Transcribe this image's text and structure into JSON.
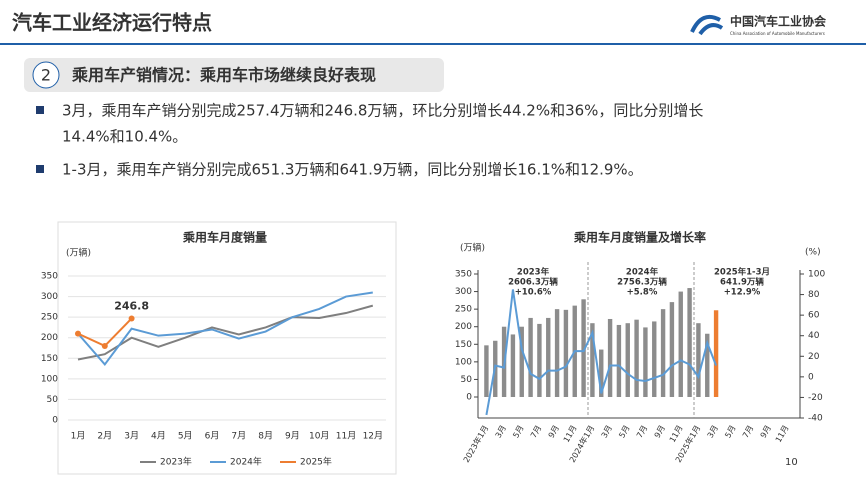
{
  "header": {
    "title": "汽车工业经济运行特点",
    "org": "中国汽车工业协会",
    "org_en": "China Association of Automobile Manufacturers"
  },
  "section": {
    "number": "2",
    "title": "乘用车产销情况：乘用车市场继续良好表现"
  },
  "bullets": [
    [
      "3月，乘用车产销分别完成257.4万辆和246.8万辆，环比分别增长44.2%和36%，同比分别增长",
      "14.4%和10.4%。"
    ],
    [
      "1-3月，乘用车产销分别完成651.3万辆和641.9万辆，同比分别增长16.1%和12.9%。"
    ]
  ],
  "page_number": "10",
  "chart_data": [
    {
      "type": "line",
      "title": "乘用车月度销量",
      "y_unit": "(万辆)",
      "categories": [
        "1月",
        "2月",
        "3月",
        "4月",
        "5月",
        "6月",
        "7月",
        "8月",
        "9月",
        "10月",
        "11月",
        "12月"
      ],
      "ylim": [
        0,
        350
      ],
      "yticks": [
        0,
        50,
        100,
        150,
        200,
        250,
        300,
        350
      ],
      "series": [
        {
          "name": "2023年",
          "color": "#7f7f7f",
          "values": [
            147,
            160,
            200,
            178,
            200,
            225,
            208,
            225,
            250,
            248,
            260,
            278
          ]
        },
        {
          "name": "2024年",
          "color": "#5b9bd5",
          "values": [
            210,
            135,
            222,
            205,
            210,
            220,
            198,
            215,
            250,
            270,
            300,
            310
          ]
        },
        {
          "name": "2025年",
          "color": "#ed7d31",
          "values": [
            210,
            180,
            246.8,
            null,
            null,
            null,
            null,
            null,
            null,
            null,
            null,
            null
          ]
        }
      ]
    },
    {
      "type": "bar-line",
      "title": "乘用车月度销量及增长率",
      "y_unit": "(万辆)",
      "y2_unit": "(%)",
      "categories": [
        "2023年1月",
        null,
        "3月",
        null,
        "5月",
        null,
        "7月",
        null,
        "9月",
        null,
        "11月",
        null,
        "2024年1月",
        null,
        "3月",
        null,
        "5月",
        null,
        "7月",
        null,
        "9月",
        null,
        "11月",
        null,
        "2025年1月",
        null,
        "3月",
        null,
        "5月",
        null,
        "7月",
        null,
        "9月",
        null,
        "11月",
        null
      ],
      "ylim": [
        0,
        350
      ],
      "yticks": [
        0,
        50,
        100,
        150,
        200,
        250,
        300,
        350
      ],
      "y2lim": [
        -40,
        100
      ],
      "y2ticks": [
        -40,
        -20,
        0,
        20,
        40,
        60,
        80,
        100
      ],
      "series": [
        {
          "name": "销量",
          "color": "#8c8c8c",
          "highlight_color": "#ed7d31",
          "values": [
            147,
            160,
            200,
            178,
            200,
            225,
            208,
            225,
            250,
            248,
            260,
            278,
            210,
            135,
            222,
            205,
            210,
            220,
            198,
            215,
            250,
            270,
            300,
            310,
            210,
            180,
            246.8,
            null,
            null,
            null,
            null,
            null,
            null,
            null,
            null,
            null
          ]
        },
        {
          "name": "增长率",
          "color": "#5b9bd5",
          "axis": "y2",
          "values": [
            -37,
            11,
            9,
            85,
            27,
            3,
            -2,
            6,
            6,
            10,
            25,
            25,
            43,
            -16,
            11,
            11,
            3,
            -3,
            -4,
            -1,
            2,
            11,
            16,
            12,
            0,
            33,
            11,
            null,
            null,
            null,
            null,
            null,
            null,
            null,
            null,
            null
          ]
        }
      ],
      "annotations": [
        [
          "2023年",
          "2606.3万辆",
          "+10.6%"
        ],
        [
          "2024年",
          "2756.3万辆",
          "+5.8%"
        ],
        [
          "2025年1-3月",
          "641.9万辆",
          "+12.9%"
        ]
      ]
    }
  ]
}
